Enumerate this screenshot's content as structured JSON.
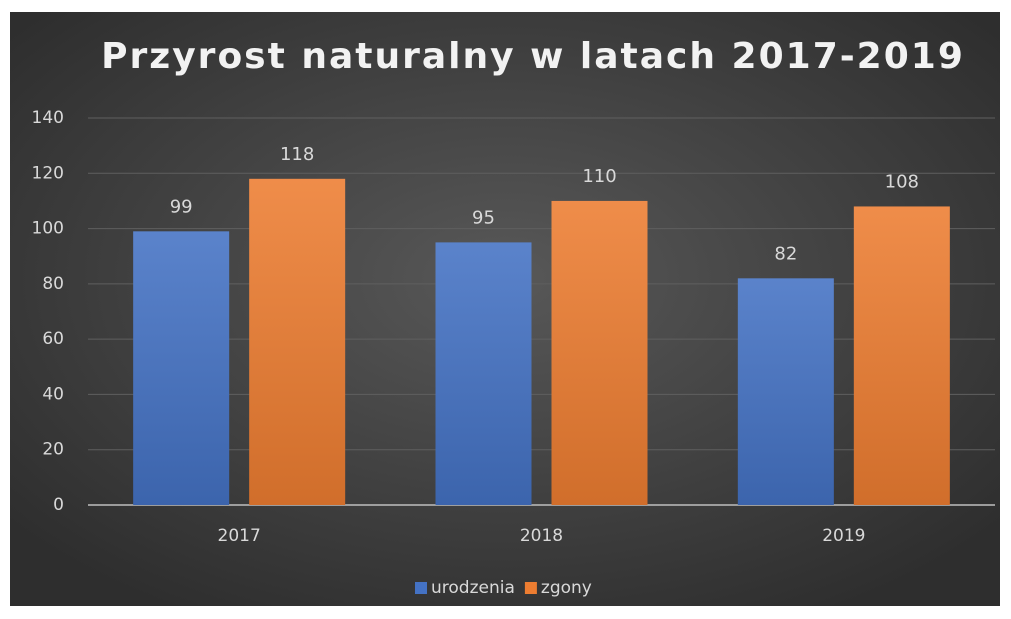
{
  "chart_data": {
    "type": "bar",
    "title": "Przyrost naturalny w latach 2017-2019",
    "categories": [
      "2017",
      "2018",
      "2019"
    ],
    "series": [
      {
        "name": "urodzenia",
        "color": "#4472c4",
        "values": [
          99,
          95,
          82
        ]
      },
      {
        "name": "zgony",
        "color": "#ed7d31",
        "values": [
          118,
          110,
          108
        ]
      }
    ],
    "ylim": [
      0,
      140
    ],
    "yticks": [
      0,
      20,
      40,
      60,
      80,
      100,
      120,
      140
    ],
    "grid": true,
    "legend": "bottom"
  }
}
